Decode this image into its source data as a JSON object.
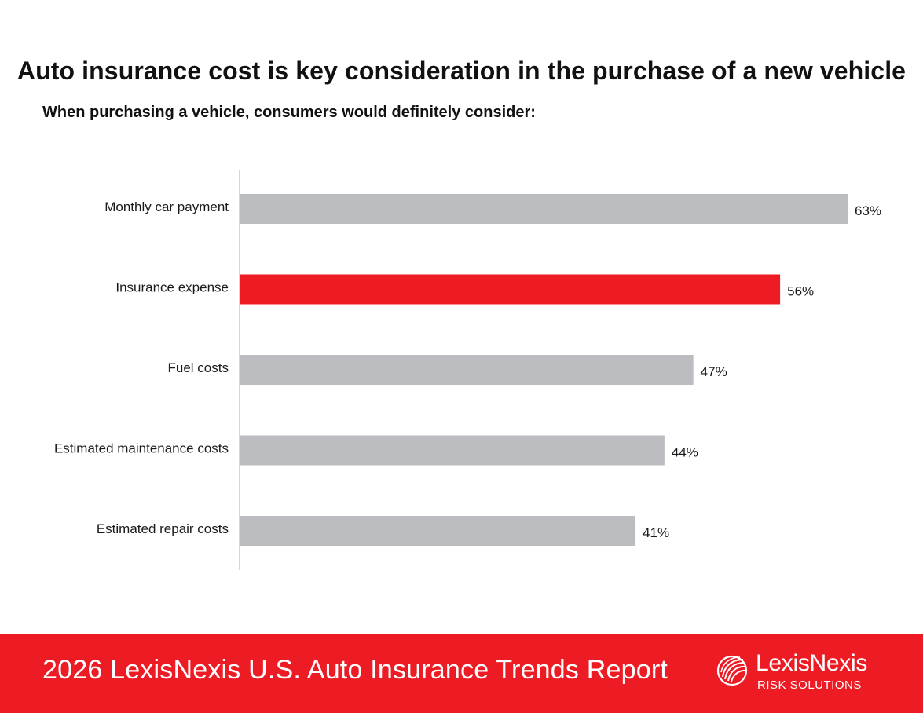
{
  "colors": {
    "bar_default": "#bcbdc0",
    "bar_highlight": "#ed1c24",
    "axis": "#c8c8c8",
    "footer_bg": "#ed1c24",
    "text": "#1a1a1a"
  },
  "chart_data": {
    "type": "bar",
    "orientation": "horizontal",
    "title": "Auto insurance cost is key consideration in the purchase of a new vehicle",
    "subtitle": "When purchasing a vehicle, consumers would definitely consider:",
    "categories": [
      "Monthly car payment",
      "Insurance expense",
      "Fuel costs",
      "Estimated maintenance costs",
      "Estimated repair costs"
    ],
    "values": [
      63,
      56,
      47,
      44,
      41
    ],
    "value_labels": [
      "63%",
      "56%",
      "47%",
      "44%",
      "41%"
    ],
    "highlight": "Insurance expense",
    "xlim": [
      0,
      63
    ],
    "grid": false,
    "legend": "none"
  },
  "footer": {
    "report_title": "2026 LexisNexis U.S. Auto Insurance Trends Report",
    "logo_name": "LexisNexis",
    "logo_sub": "RISK SOLUTIONS",
    "logo_icon": "lexisnexis-logo-icon"
  }
}
